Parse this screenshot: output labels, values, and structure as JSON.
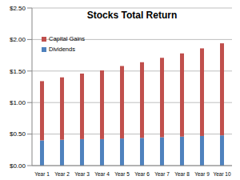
{
  "chart_data": {
    "type": "bar",
    "title": "Stocks Total Return",
    "stacked": true,
    "grid": true,
    "legend": "upper left",
    "categories": [
      "Year 1",
      "Year 2",
      "Year 3",
      "Year 4",
      "Year 5",
      "Year 6",
      "Year 7",
      "Year 8",
      "Year 9",
      "Year 10"
    ],
    "series": [
      {
        "name": "Dividends",
        "color": "#4f81bd",
        "values": [
          0.4,
          0.41,
          0.42,
          0.42,
          0.43,
          0.44,
          0.45,
          0.46,
          0.47,
          0.48
        ]
      },
      {
        "name": "Capital Gains",
        "color": "#c0504d",
        "values": [
          0.94,
          0.99,
          1.04,
          1.09,
          1.15,
          1.2,
          1.26,
          1.32,
          1.39,
          1.46
        ]
      }
    ],
    "ylim": [
      0,
      2.5
    ],
    "yticks": [
      {
        "value": 0,
        "label": "$0.00"
      },
      {
        "value": 0.5,
        "label": "$0.50"
      },
      {
        "value": 1,
        "label": "$1.00"
      },
      {
        "value": 1.5,
        "label": "$1.50"
      },
      {
        "value": 2,
        "label": "$2.00"
      },
      {
        "value": 2.5,
        "label": "$2.50"
      }
    ]
  }
}
